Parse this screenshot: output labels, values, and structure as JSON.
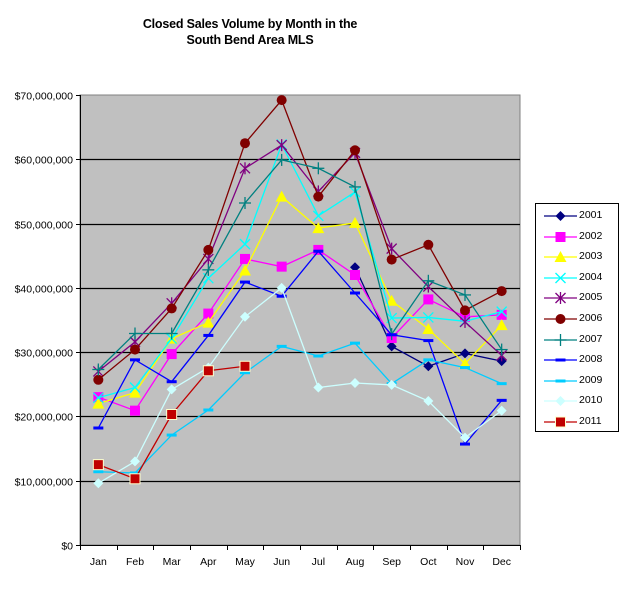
{
  "chart_data": {
    "type": "line",
    "title": "Closed Sales Volume by Month in the South Bend Area MLS",
    "title_lines": [
      "Closed Sales Volume by Month in the",
      "South Bend Area MLS"
    ],
    "xlabel": "",
    "ylabel": "",
    "categories": [
      "Jan",
      "Feb",
      "Mar",
      "Apr",
      "May",
      "Jun",
      "Jul",
      "Aug",
      "Sep",
      "Oct",
      "Nov",
      "Dec"
    ],
    "ylim": [
      0,
      70000000
    ],
    "yticks": [
      0,
      10000000,
      20000000,
      30000000,
      40000000,
      50000000,
      60000000,
      70000000
    ],
    "ytick_labels": [
      "$0",
      "$10,000,000",
      "$20,000,000",
      "$30,000,000",
      "$40,000,000",
      "$50,000,000",
      "$60,000,000",
      "$70,000,000"
    ],
    "grid": true,
    "plot_background": "#c0c0c0",
    "legend_position": "right",
    "series": [
      {
        "name": "2001",
        "color": "#000080",
        "marker": "diamond",
        "values": [
          null,
          null,
          null,
          null,
          null,
          null,
          null,
          43200000,
          30900000,
          27800000,
          29800000,
          28600000
        ]
      },
      {
        "name": "2002",
        "color": "#ff00ff",
        "marker": "square",
        "values": [
          23000000,
          20900000,
          29700000,
          36000000,
          44500000,
          43300000,
          45900000,
          42000000,
          32200000,
          38200000,
          35500000,
          35800000
        ]
      },
      {
        "name": "2003",
        "color": "#ffff00",
        "marker": "triangle",
        "values": [
          22000000,
          23700000,
          32100000,
          34600000,
          42700000,
          54200000,
          49300000,
          50100000,
          38000000,
          33600000,
          28200000,
          34200000
        ]
      },
      {
        "name": "2004",
        "color": "#00ffff",
        "marker": "x",
        "values": [
          22900000,
          24500000,
          32100000,
          41500000,
          46800000,
          62300000,
          51200000,
          54900000,
          35300000,
          35400000,
          34800000,
          36300000
        ]
      },
      {
        "name": "2005",
        "color": "#800080",
        "marker": "asterisk",
        "values": [
          27000000,
          31600000,
          37600000,
          44500000,
          58600000,
          62200000,
          55000000,
          61000000,
          46100000,
          40200000,
          34700000,
          29500000
        ]
      },
      {
        "name": "2006",
        "color": "#800000",
        "marker": "circle",
        "values": [
          25700000,
          30400000,
          36800000,
          45900000,
          62500000,
          69200000,
          54200000,
          61400000,
          44400000,
          46700000,
          36500000,
          39500000
        ]
      },
      {
        "name": "2007",
        "color": "#008080",
        "marker": "plus",
        "values": [
          27300000,
          32900000,
          32900000,
          42800000,
          53200000,
          59900000,
          58600000,
          55700000,
          32800000,
          41100000,
          38900000,
          30400000
        ]
      },
      {
        "name": "2008",
        "color": "#0000ff",
        "marker": "dash",
        "values": [
          18200000,
          28800000,
          25400000,
          32600000,
          40900000,
          38700000,
          45700000,
          39200000,
          32700000,
          31800000,
          15700000,
          22500000
        ]
      },
      {
        "name": "2009",
        "color": "#00ccff",
        "marker": "dash",
        "values": [
          11400000,
          11200000,
          17100000,
          21000000,
          26800000,
          30900000,
          29400000,
          31400000,
          25100000,
          28800000,
          27600000,
          25100000
        ]
      },
      {
        "name": "2010",
        "color": "#ccffff",
        "marker": "diamond",
        "values": [
          9600000,
          13000000,
          24200000,
          27600000,
          35500000,
          40000000,
          24500000,
          25200000,
          24900000,
          22400000,
          16700000,
          20900000
        ]
      },
      {
        "name": "2011",
        "color": "#c00000",
        "marker": "square-outlined",
        "values": [
          12500000,
          10300000,
          20300000,
          27100000,
          27800000,
          null,
          null,
          null,
          null,
          null,
          null,
          null
        ]
      }
    ]
  },
  "legend": {
    "items": [
      "2001",
      "2002",
      "2003",
      "2004",
      "2005",
      "2006",
      "2007",
      "2008",
      "2009",
      "2010",
      "2011"
    ]
  }
}
